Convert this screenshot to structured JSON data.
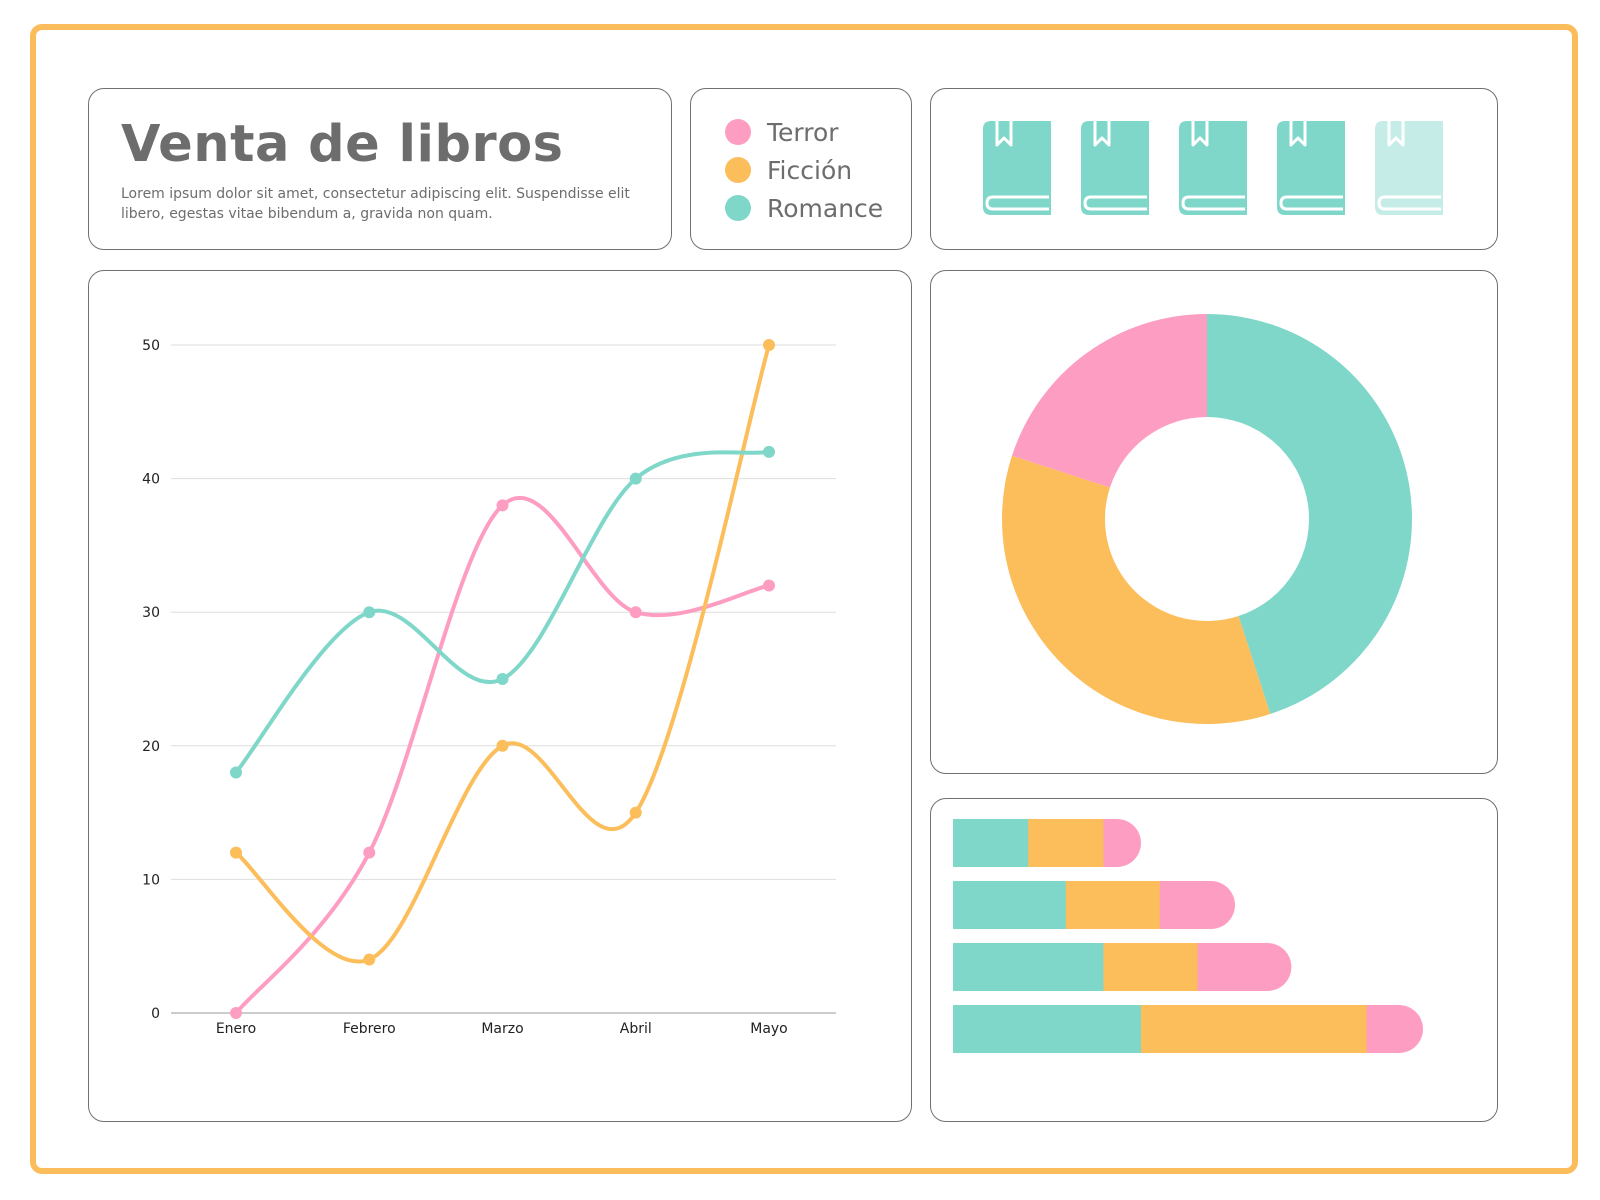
{
  "header": {
    "title": "Venta de libros",
    "subtitle": "Lorem ipsum dolor sit amet, consectetur adipiscing elit. Suspendisse elit libero, egestas vitae bibendum a, gravida non quam."
  },
  "colors": {
    "terror": "#fe9dc2",
    "ficcion": "#fcbd5b",
    "romance": "#7fd7ca",
    "frame": "#fbbd5c",
    "text": "#6d6d6d"
  },
  "legend": {
    "items": [
      {
        "label": "Terror",
        "color": "#fe9dc2"
      },
      {
        "label": "Ficción",
        "color": "#fcbd5b"
      },
      {
        "label": "Romance",
        "color": "#7fd7ca"
      }
    ]
  },
  "book_rating": {
    "icon": "book-icon",
    "value": 4,
    "max": 5
  },
  "chart_data": [
    {
      "type": "line",
      "title": "",
      "xlabel": "",
      "ylabel": "",
      "categories": [
        "Enero",
        "Febrero",
        "Marzo",
        "Abril",
        "Mayo"
      ],
      "ylim": [
        0,
        50
      ],
      "yticks": [
        0,
        10,
        20,
        30,
        40,
        50
      ],
      "grid": true,
      "series": [
        {
          "name": "Terror",
          "color": "#fe9dc2",
          "values": [
            0,
            12,
            38,
            30,
            32
          ]
        },
        {
          "name": "Ficción",
          "color": "#fcbd5b",
          "values": [
            12,
            4,
            20,
            15,
            50
          ]
        },
        {
          "name": "Romance",
          "color": "#7fd7ca",
          "values": [
            18,
            30,
            25,
            40,
            42
          ]
        }
      ]
    },
    {
      "type": "pie",
      "donut": true,
      "slices": [
        {
          "name": "Romance",
          "color": "#7fd7ca",
          "value": 45
        },
        {
          "name": "Ficción",
          "color": "#fcbd5b",
          "value": 35
        },
        {
          "name": "Terror",
          "color": "#fe9dc2",
          "value": 20
        }
      ]
    },
    {
      "type": "bar",
      "orientation": "horizontal",
      "stacked": true,
      "xlim": [
        0,
        100
      ],
      "bars": [
        {
          "segments": [
            {
              "name": "Romance",
              "color": "#7fd7ca",
              "value": 16
            },
            {
              "name": "Ficción",
              "color": "#fcbd5b",
              "value": 16
            },
            {
              "name": "Terror",
              "color": "#fe9dc2",
              "value": 8
            }
          ]
        },
        {
          "segments": [
            {
              "name": "Romance",
              "color": "#7fd7ca",
              "value": 24
            },
            {
              "name": "Ficción",
              "color": "#fcbd5b",
              "value": 20
            },
            {
              "name": "Terror",
              "color": "#fe9dc2",
              "value": 16
            }
          ]
        },
        {
          "segments": [
            {
              "name": "Romance",
              "color": "#7fd7ca",
              "value": 32
            },
            {
              "name": "Ficción",
              "color": "#fcbd5b",
              "value": 20
            },
            {
              "name": "Terror",
              "color": "#fe9dc2",
              "value": 20
            }
          ]
        },
        {
          "segments": [
            {
              "name": "Romance",
              "color": "#7fd7ca",
              "value": 40
            },
            {
              "name": "Ficción",
              "color": "#fcbd5b",
              "value": 48
            },
            {
              "name": "Terror",
              "color": "#fe9dc2",
              "value": 12
            }
          ]
        }
      ]
    }
  ]
}
